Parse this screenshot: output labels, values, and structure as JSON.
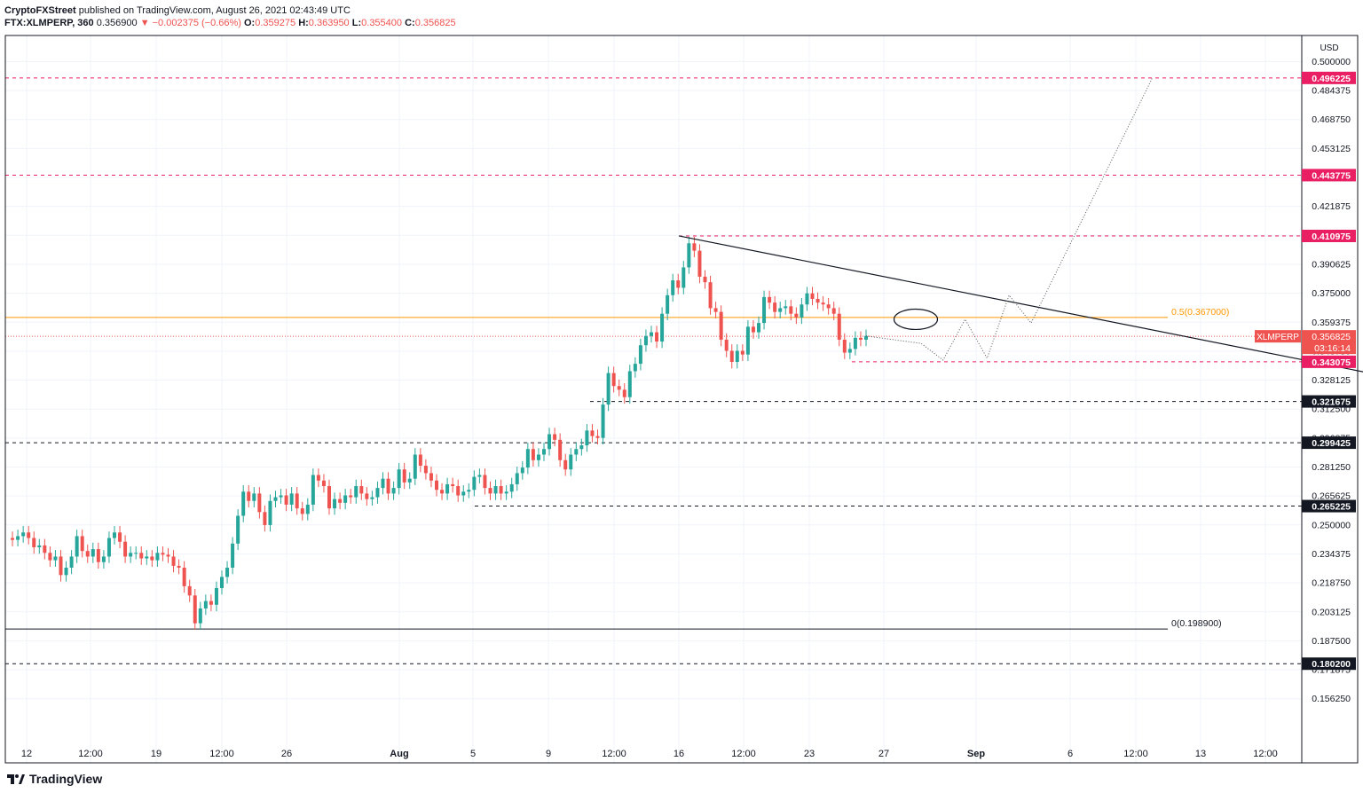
{
  "header": {
    "publisher": "CryptoFXStreet",
    "published_text": "published on TradingView.com, August 26, 2021 02:43:49 UTC",
    "symbol": "FTX:XLMPERP, 360",
    "last": "0.356900",
    "change": "▼ −0.002375 (−0.66%)",
    "o_label": "O:",
    "o": "0.359275",
    "h_label": "H:",
    "h": "0.363950",
    "l_label": "L:",
    "l": "0.355400",
    "c_label": "C:",
    "c": "0.356825"
  },
  "footer": {
    "brand": "TradingView"
  },
  "colors": {
    "up": "#26a69a",
    "down": "#ef5350",
    "pink": "#e91e63",
    "orange": "#ff9800",
    "black": "#131722",
    "grid": "#f0f3fa"
  },
  "chart_data": {
    "type": "candlestick",
    "currency_label": "USD",
    "y_ticks": [
      "0.500000",
      "0.484375",
      "0.468750",
      "0.453125",
      "0.437500",
      "0.421875",
      "0.406250",
      "0.390625",
      "0.375000",
      "0.359375",
      "0.343750",
      "0.328125",
      "0.312500",
      "0.296875",
      "0.281250",
      "0.265625",
      "0.250000",
      "0.234375",
      "0.218750",
      "0.203125",
      "0.187500",
      "0.171875",
      "0.156250"
    ],
    "x_ticks": [
      "12",
      "12:00",
      "19",
      "12:00",
      "26",
      "Aug",
      "5",
      "9",
      "12:00",
      "16",
      "12:00",
      "23",
      "27",
      "Sep",
      "6",
      "12:00",
      "13",
      "12:00"
    ],
    "price_labels": [
      {
        "text": "0.496225",
        "value": 0.496225,
        "style": "pink"
      },
      {
        "text": "0.443775",
        "value": 0.443775,
        "style": "pink"
      },
      {
        "text": "0.410975",
        "value": 0.410975,
        "style": "pink"
      },
      {
        "text": "0.343075",
        "value": 0.343075,
        "style": "pink"
      },
      {
        "text": "0.321675",
        "value": 0.321675,
        "style": "black"
      },
      {
        "text": "0.299425",
        "value": 0.299425,
        "style": "black"
      },
      {
        "text": "0.265225",
        "value": 0.265225,
        "style": "black"
      },
      {
        "text": "0.180200",
        "value": 0.1802,
        "style": "black"
      }
    ],
    "current_price": {
      "symbol": "XLMPERP",
      "value": 0.356825,
      "text": "0.356825",
      "countdown": "03:16:14"
    },
    "fib_levels": [
      {
        "label": "0.5(0.367000)",
        "value": 0.367,
        "color": "orange"
      },
      {
        "label": "0(0.198900)",
        "value": 0.1989,
        "color": "black"
      }
    ],
    "closes": [
      0.248,
      0.247,
      0.249,
      0.251,
      0.248,
      0.243,
      0.244,
      0.24,
      0.236,
      0.238,
      0.228,
      0.232,
      0.238,
      0.249,
      0.241,
      0.238,
      0.242,
      0.235,
      0.238,
      0.248,
      0.251,
      0.246,
      0.238,
      0.24,
      0.24,
      0.237,
      0.238,
      0.236,
      0.24,
      0.239,
      0.238,
      0.233,
      0.232,
      0.222,
      0.217,
      0.202,
      0.21,
      0.214,
      0.212,
      0.221,
      0.227,
      0.232,
      0.245,
      0.26,
      0.273,
      0.268,
      0.272,
      0.262,
      0.255,
      0.268,
      0.27,
      0.271,
      0.266,
      0.272,
      0.264,
      0.261,
      0.266,
      0.282,
      0.279,
      0.276,
      0.264,
      0.269,
      0.267,
      0.271,
      0.27,
      0.276,
      0.272,
      0.269,
      0.27,
      0.275,
      0.28,
      0.272,
      0.275,
      0.285,
      0.278,
      0.28,
      0.293,
      0.287,
      0.283,
      0.279,
      0.274,
      0.272,
      0.277,
      0.276,
      0.271,
      0.273,
      0.274,
      0.281,
      0.282,
      0.275,
      0.272,
      0.276,
      0.272,
      0.273,
      0.277,
      0.283,
      0.286,
      0.296,
      0.29,
      0.293,
      0.296,
      0.304,
      0.301,
      0.29,
      0.285,
      0.293,
      0.296,
      0.298,
      0.306,
      0.303,
      0.302,
      0.32,
      0.337,
      0.33,
      0.328,
      0.324,
      0.338,
      0.342,
      0.352,
      0.357,
      0.359,
      0.354,
      0.369,
      0.379,
      0.387,
      0.383,
      0.394,
      0.407,
      0.403,
      0.389,
      0.386,
      0.372,
      0.37,
      0.355,
      0.349,
      0.343,
      0.349,
      0.347,
      0.362,
      0.359,
      0.364,
      0.378,
      0.375,
      0.37,
      0.372,
      0.373,
      0.369,
      0.367,
      0.374,
      0.38,
      0.377,
      0.375,
      0.374,
      0.372,
      0.369,
      0.355,
      0.348,
      0.35,
      0.356,
      0.355,
      0.357
    ],
    "projection_path": [
      [
        0,
        0.357
      ],
      [
        5,
        0.353
      ],
      [
        7,
        0.344
      ],
      [
        9,
        0.366
      ],
      [
        11,
        0.345
      ],
      [
        13,
        0.379
      ],
      [
        15,
        0.364
      ],
      [
        26,
        0.496
      ]
    ],
    "triangle_line": [
      [
        0,
        0.411
      ],
      [
        67,
        0.332
      ]
    ],
    "ellipse": {
      "center": [
        40,
        0.366
      ],
      "rx": 3.5,
      "ry": 0.0055
    }
  }
}
